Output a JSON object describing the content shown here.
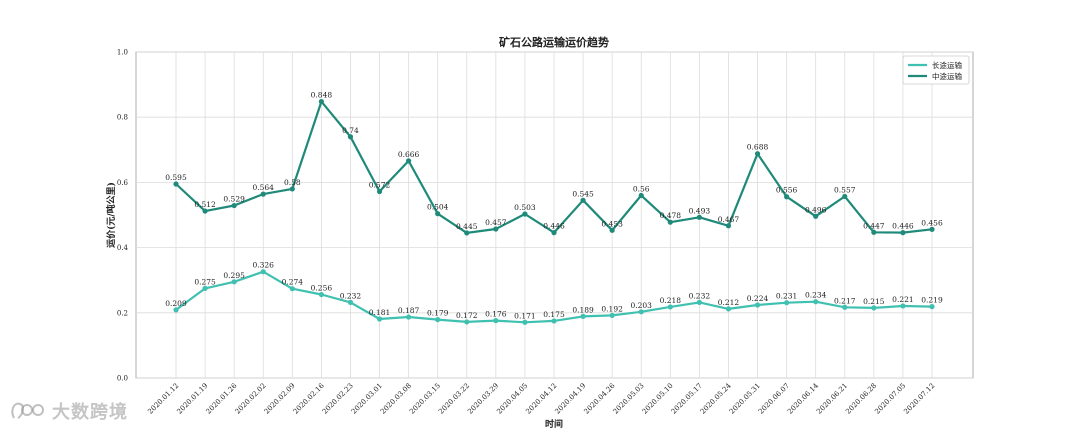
{
  "chart_data": {
    "type": "line",
    "title": "矿石公路运输运价趋势",
    "xlabel": "时间",
    "ylabel": "运价(元/吨公里)",
    "ylim": [
      0.0,
      1.0
    ],
    "yticks": [
      "0.0",
      "0.2",
      "0.4",
      "0.6",
      "0.8",
      "1.0"
    ],
    "grid": true,
    "legend_position": "top-right",
    "categories": [
      "2020.01.12",
      "2020.01.19",
      "2020.01.26",
      "2020.02.02",
      "2020.02.09",
      "2020.02.16",
      "2020.02.23",
      "2020.03.01",
      "2020.03.08",
      "2020.03.15",
      "2020.03.22",
      "2020.03.29",
      "2020.04.05",
      "2020.04.12",
      "2020.04.19",
      "2020.04.26",
      "2020.05.03",
      "2020.05.10",
      "2020.05.17",
      "2020.05.24",
      "2020.05.31",
      "2020.06.07",
      "2020.06.14",
      "2020.06.21",
      "2020.06.28",
      "2020.07.05",
      "2020.07.12"
    ],
    "series": [
      {
        "name": "长途运输",
        "color": "#40c0b0",
        "values": [
          0.209,
          0.275,
          0.295,
          0.326,
          0.274,
          0.256,
          0.232,
          0.181,
          0.187,
          0.179,
          0.172,
          0.176,
          0.171,
          0.175,
          0.189,
          0.192,
          0.203,
          0.218,
          0.232,
          0.212,
          0.224,
          0.231,
          0.234,
          0.217,
          0.215,
          0.221,
          0.219
        ],
        "labels": [
          "0.209",
          "0.275",
          "0.295",
          "0.326",
          "0.274",
          "0.256",
          "0.232",
          "0.181",
          "0.187",
          "0.179",
          "0.172",
          "0.176",
          "0.171",
          "0.175",
          "0.189",
          "0.192",
          "0.203",
          "0.218",
          "0.232",
          "0.212",
          "0.224",
          "0.231",
          "0.234",
          "0.217",
          "0.215",
          "0.221",
          "0.219"
        ]
      },
      {
        "name": "中途运输",
        "color": "#1f8a7a",
        "values": [
          0.595,
          0.512,
          0.529,
          0.564,
          0.58,
          0.848,
          0.74,
          0.572,
          0.666,
          0.504,
          0.445,
          0.457,
          0.503,
          0.446,
          0.545,
          0.453,
          0.56,
          0.478,
          0.493,
          0.467,
          0.688,
          0.556,
          0.496,
          0.557,
          0.447,
          0.446,
          0.456
        ],
        "labels": [
          "0.595",
          "0.512",
          "0.529",
          "0.564",
          "0.58",
          "0.848",
          "0.74",
          "0.572",
          "0.666",
          "0.504",
          "0.445",
          "0.457",
          "0.503",
          "0.446",
          "0.545",
          "0.453",
          "0.56",
          "0.478",
          "0.493",
          "0.467",
          "0.688",
          "0.556",
          "0.496",
          "0.557",
          "0.447",
          "0.446",
          "0.456"
        ]
      }
    ]
  },
  "watermark": {
    "text": "大数跨境"
  }
}
